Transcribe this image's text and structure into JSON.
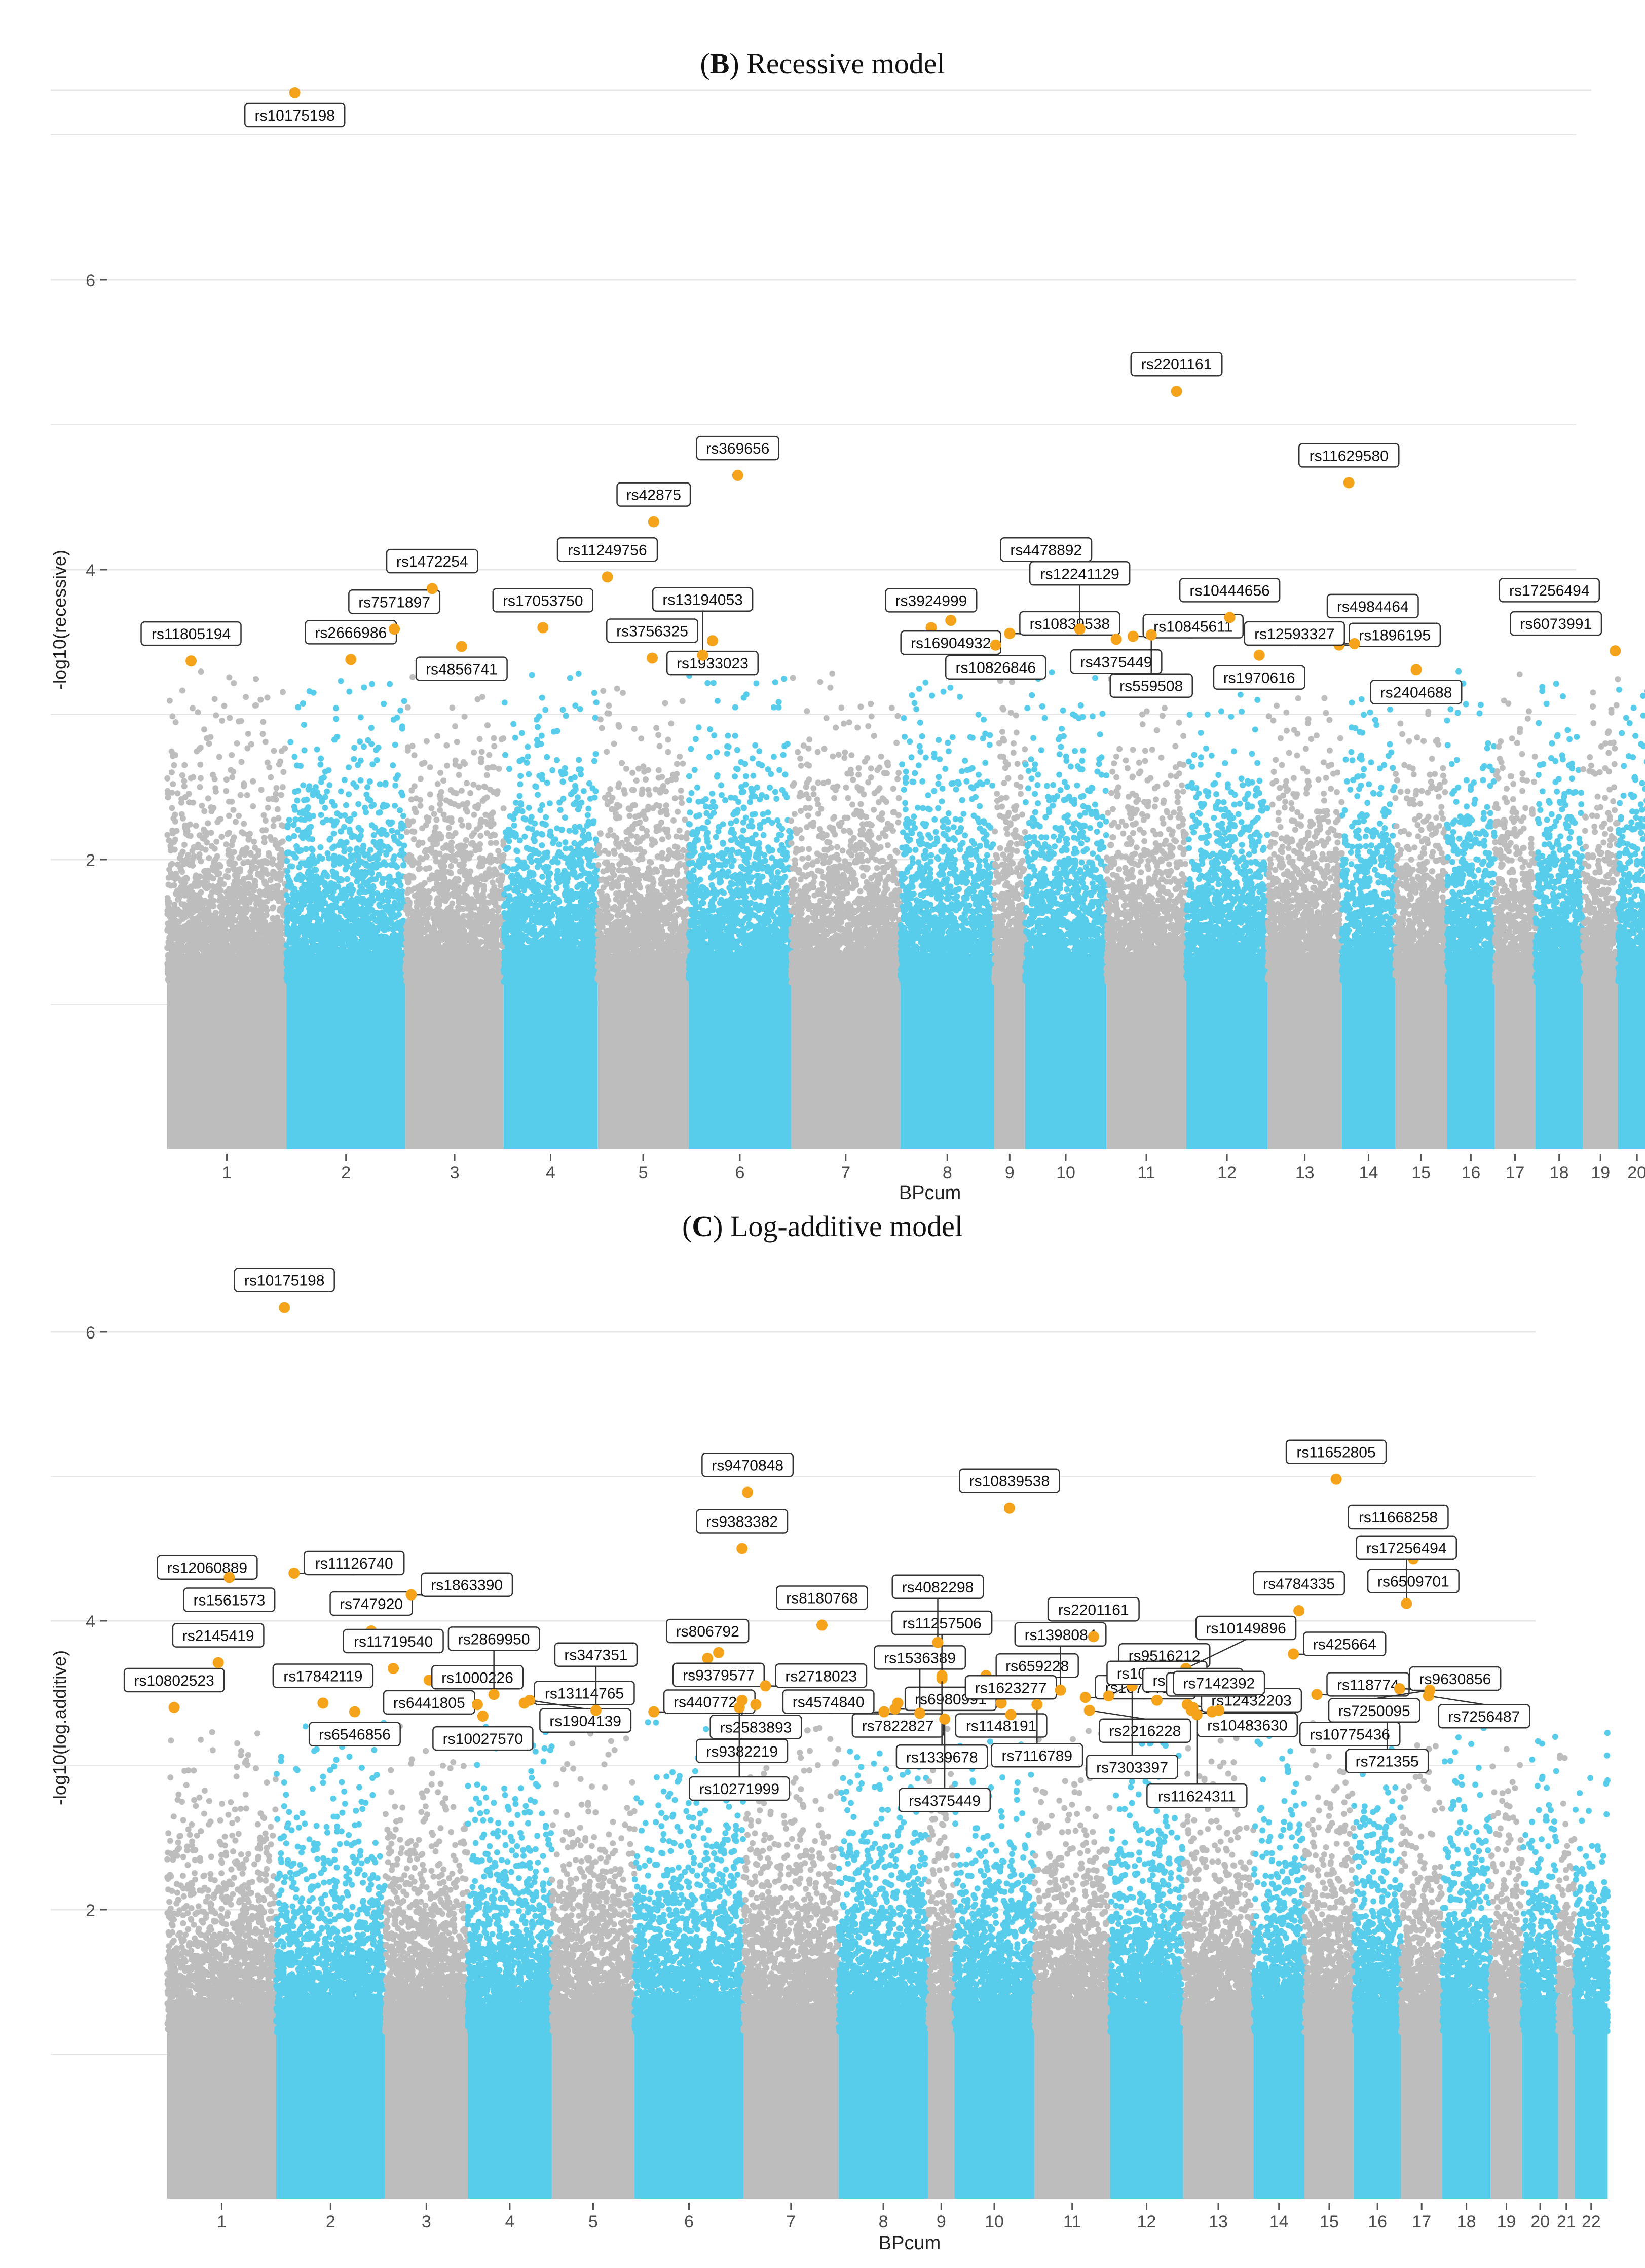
{
  "figure": {
    "colors": {
      "grey": "#bdbdbd",
      "blue": "#58cdeb",
      "highlight": "#f5a31a",
      "grid": "#e6e6e6",
      "axis_text": "#4d4d4d"
    }
  },
  "chart_data": [
    {
      "type": "scatter",
      "panel_letter": "B",
      "title": "Recessive model",
      "xlabel": "BPcum",
      "ylabel": "-log10(recessive)",
      "ylim": [
        0,
        7.35
      ],
      "yticks": [
        2,
        4,
        6
      ],
      "chromosomes": [
        "1",
        "2",
        "3",
        "4",
        "5",
        "6",
        "7",
        "8",
        "9",
        "10",
        "11",
        "12",
        "13",
        "14",
        "15",
        "16",
        "17",
        "18",
        "19",
        "20",
        "21",
        "22"
      ],
      "chromosome_bounds": [
        0,
        0.085,
        0.17,
        0.24,
        0.307,
        0.372,
        0.445,
        0.523,
        0.59,
        0.612,
        0.67,
        0.727,
        0.785,
        0.838,
        0.876,
        0.913,
        0.947,
        0.976,
        1.01,
        1.035,
        1.062,
        1.076,
        1.1
      ],
      "highlighted_snps": [
        {
          "label": "rs10175198",
          "x": 0.091,
          "y": 7.29
        },
        {
          "label": "rs11805194",
          "x": 0.017,
          "y": 3.37
        },
        {
          "label": "rs2666986",
          "x": 0.131,
          "y": 3.38
        },
        {
          "label": "rs7571897",
          "x": 0.162,
          "y": 3.59
        },
        {
          "label": "rs1472254",
          "x": 0.189,
          "y": 3.87
        },
        {
          "label": "rs4856741",
          "x": 0.21,
          "y": 3.47
        },
        {
          "label": "rs17053750",
          "x": 0.268,
          "y": 3.6
        },
        {
          "label": "rs11249756",
          "x": 0.314,
          "y": 3.95
        },
        {
          "label": "rs42875",
          "x": 0.347,
          "y": 4.33
        },
        {
          "label": "rs3756325",
          "x": 0.346,
          "y": 3.39
        },
        {
          "label": "rs369656",
          "x": 0.407,
          "y": 4.65
        },
        {
          "label": "rs1933023",
          "x": 0.389,
          "y": 3.51
        },
        {
          "label": "rs13194053",
          "x": 0.382,
          "y": 3.41
        },
        {
          "label": "rs3924999",
          "x": 0.545,
          "y": 3.6
        },
        {
          "label": "rs16904932",
          "x": 0.559,
          "y": 3.65
        },
        {
          "label": "rs10826846",
          "x": 0.591,
          "y": 3.48
        },
        {
          "label": "rs4478892",
          "x": 0.627,
          "y": 3.95
        },
        {
          "label": "rs10839538",
          "x": 0.601,
          "y": 3.56
        },
        {
          "label": "rs12241129",
          "x": 0.651,
          "y": 3.59
        },
        {
          "label": "rs4375449",
          "x": 0.677,
          "y": 3.52
        },
        {
          "label": "rs10845611",
          "x": 0.689,
          "y": 3.54
        },
        {
          "label": "rs559508",
          "x": 0.702,
          "y": 3.55
        },
        {
          "label": "rs2201161",
          "x": 0.72,
          "y": 5.23
        },
        {
          "label": "rs10444656",
          "x": 0.758,
          "y": 3.67
        },
        {
          "label": "rs1970616",
          "x": 0.779,
          "y": 3.41
        },
        {
          "label": "rs11629580",
          "x": 0.843,
          "y": 4.6
        },
        {
          "label": "rs4984464",
          "x": 0.86,
          "y": 3.56
        },
        {
          "label": "rs1896195",
          "x": 0.836,
          "y": 3.48
        },
        {
          "label": "rs12593327",
          "x": 0.847,
          "y": 3.49
        },
        {
          "label": "rs2404688",
          "x": 0.891,
          "y": 3.31
        },
        {
          "label": "rs17256494",
          "x": 0.986,
          "y": 3.67
        },
        {
          "label": "rs6073991",
          "x": 1.033,
          "y": 3.44
        }
      ]
    },
    {
      "type": "scatter",
      "panel_letter": "C",
      "title": "Log-additive model",
      "xlabel": "BPcum",
      "ylabel": "-log10(log.additive)",
      "ylim": [
        0,
        6.6
      ],
      "yticks": [
        2,
        4,
        6
      ],
      "chromosomes": [
        "1",
        "2",
        "3",
        "4",
        "5",
        "6",
        "7",
        "8",
        "9",
        "10",
        "11",
        "12",
        "13",
        "14",
        "15",
        "16",
        "17",
        "18",
        "19",
        "20",
        "21",
        "22"
      ],
      "chromosome_bounds": [
        0,
        0.079,
        0.158,
        0.218,
        0.279,
        0.339,
        0.418,
        0.487,
        0.552,
        0.571,
        0.629,
        0.684,
        0.737,
        0.788,
        0.825,
        0.861,
        0.895,
        0.925,
        0.96,
        0.983,
        1.009,
        1.021,
        1.045
      ],
      "highlighted_snps": [
        {
          "label": "rs10175198",
          "x": 0.085,
          "y": 6.17
        },
        {
          "label": "rs12060889",
          "x": 0.029,
          "y": 4.18
        },
        {
          "label": "rs10802523",
          "x": 0.005,
          "y": 3.4
        },
        {
          "label": "rs1561573",
          "x": 0.045,
          "y": 4.3
        },
        {
          "label": "rs2145419",
          "x": 0.037,
          "y": 3.71
        },
        {
          "label": "rs11126740",
          "x": 0.092,
          "y": 4.33
        },
        {
          "label": "rs17842119",
          "x": 0.113,
          "y": 3.43
        },
        {
          "label": "rs747920",
          "x": 0.148,
          "y": 3.93
        },
        {
          "label": "rs11719540",
          "x": 0.164,
          "y": 3.67
        },
        {
          "label": "rs6546856",
          "x": 0.136,
          "y": 3.37
        },
        {
          "label": "rs1863390",
          "x": 0.177,
          "y": 4.18
        },
        {
          "label": "rs6441805",
          "x": 0.19,
          "y": 3.59
        },
        {
          "label": "rs1000226",
          "x": 0.225,
          "y": 3.42
        },
        {
          "label": "rs10027570",
          "x": 0.229,
          "y": 3.34
        },
        {
          "label": "rs2869950",
          "x": 0.237,
          "y": 3.49
        },
        {
          "label": "rs13114765",
          "x": 0.259,
          "y": 3.43
        },
        {
          "label": "rs1904139",
          "x": 0.263,
          "y": 3.45
        },
        {
          "label": "rs347351",
          "x": 0.311,
          "y": 3.38
        },
        {
          "label": "rs4407724",
          "x": 0.353,
          "y": 3.37
        },
        {
          "label": "rs9470848",
          "x": 0.421,
          "y": 4.89
        },
        {
          "label": "rs9383382",
          "x": 0.417,
          "y": 4.5
        },
        {
          "label": "rs806792",
          "x": 0.392,
          "y": 3.74
        },
        {
          "label": "rs9379577",
          "x": 0.4,
          "y": 3.78
        },
        {
          "label": "rs2718023",
          "x": 0.434,
          "y": 3.55
        },
        {
          "label": "rs9382219",
          "x": 0.417,
          "y": 3.45
        },
        {
          "label": "rs2583893",
          "x": 0.427,
          "y": 3.42
        },
        {
          "label": "rs10271999",
          "x": 0.415,
          "y": 3.4
        },
        {
          "label": "rs8180768",
          "x": 0.475,
          "y": 3.97
        },
        {
          "label": "rs7822827",
          "x": 0.53,
          "y": 3.43
        },
        {
          "label": "rs6980991",
          "x": 0.528,
          "y": 3.39
        },
        {
          "label": "rs4574840",
          "x": 0.52,
          "y": 3.37
        },
        {
          "label": "rs1536389",
          "x": 0.546,
          "y": 3.36
        },
        {
          "label": "rs11257506",
          "x": 0.562,
          "y": 3.6
        },
        {
          "label": "rs4082298",
          "x": 0.559,
          "y": 3.85
        },
        {
          "label": "rs1339678",
          "x": 0.562,
          "y": 3.62
        },
        {
          "label": "rs4375449",
          "x": 0.564,
          "y": 3.32
        },
        {
          "label": "rs10839538",
          "x": 0.611,
          "y": 4.78
        },
        {
          "label": "rs659228",
          "x": 0.594,
          "y": 3.62
        },
        {
          "label": "rs1148191",
          "x": 0.605,
          "y": 3.43
        },
        {
          "label": "rs1623277",
          "x": 0.612,
          "y": 3.35
        },
        {
          "label": "rs7116789",
          "x": 0.631,
          "y": 3.42
        },
        {
          "label": "rs1398084",
          "x": 0.648,
          "y": 3.52
        },
        {
          "label": "rs10734680",
          "x": 0.666,
          "y": 3.47
        },
        {
          "label": "rs2201161",
          "x": 0.672,
          "y": 3.89
        },
        {
          "label": "rs2216228",
          "x": 0.669,
          "y": 3.38
        },
        {
          "label": "rs9516212",
          "x": 0.683,
          "y": 3.48
        },
        {
          "label": "rs7303397",
          "x": 0.7,
          "y": 3.55
        },
        {
          "label": "rs10444656",
          "x": 0.718,
          "y": 3.45
        },
        {
          "label": "rs10149896",
          "x": 0.739,
          "y": 3.67
        },
        {
          "label": "rs10483630",
          "x": 0.74,
          "y": 3.42
        },
        {
          "label": "rs12432203",
          "x": 0.743,
          "y": 3.38
        },
        {
          "label": "rs10483637",
          "x": 0.744,
          "y": 3.4
        },
        {
          "label": "rs11624311",
          "x": 0.747,
          "y": 3.35
        },
        {
          "label": "rs4389065",
          "x": 0.758,
          "y": 3.37
        },
        {
          "label": "rs7142392",
          "x": 0.763,
          "y": 3.38
        },
        {
          "label": "rs11652805",
          "x": 0.848,
          "y": 4.98
        },
        {
          "label": "rs4784335",
          "x": 0.821,
          "y": 4.07
        },
        {
          "label": "rs425664",
          "x": 0.817,
          "y": 3.77
        },
        {
          "label": "rs118774",
          "x": 0.834,
          "y": 3.49
        },
        {
          "label": "rs10775436",
          "x": 0.858,
          "y": 3.37
        },
        {
          "label": "rs11668258",
          "x": 0.893,
          "y": 4.53
        },
        {
          "label": "rs6509701",
          "x": 0.904,
          "y": 4.43
        },
        {
          "label": "rs17256494",
          "x": 0.899,
          "y": 4.12
        },
        {
          "label": "rs9630856",
          "x": 0.894,
          "y": 3.53
        },
        {
          "label": "rs721355",
          "x": 0.885,
          "y": 3.38
        },
        {
          "label": "rs7250095",
          "x": 0.916,
          "y": 3.52
        },
        {
          "label": "rs7256487",
          "x": 0.915,
          "y": 3.48
        }
      ]
    }
  ]
}
